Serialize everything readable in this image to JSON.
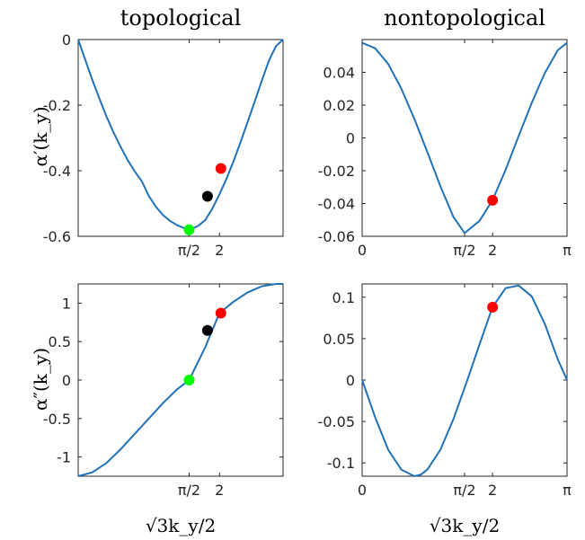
{
  "columns": [
    "topological",
    "nontopological"
  ],
  "row_ylabels": [
    "α′(k_y)",
    "α″(k_y)"
  ],
  "xlabel": "√3k_y/2",
  "colors": {
    "line": "#1f72b8",
    "red": "#ff0000",
    "black": "#000000",
    "green": "#00ff00"
  },
  "chart_data": [
    {
      "type": "line",
      "title": "topological",
      "xlabel": "",
      "ylabel": "α′(k_y)",
      "xlim": [
        0,
        2.9
      ],
      "ylim": [
        -0.6,
        0
      ],
      "xticks": [
        {
          "v": 1.5708,
          "label": "π/2"
        },
        {
          "v": 2,
          "label": "2"
        }
      ],
      "yticks": [
        {
          "v": 0,
          "label": "0"
        },
        {
          "v": -0.2,
          "label": "-0.2"
        },
        {
          "v": -0.4,
          "label": "-0.4"
        },
        {
          "v": -0.6,
          "label": "-0.6"
        }
      ],
      "series": [
        {
          "x": [
            0,
            0.1,
            0.2,
            0.3,
            0.4,
            0.5,
            0.6,
            0.7,
            0.8,
            0.9,
            1.0,
            1.1,
            1.2,
            1.3,
            1.4,
            1.5,
            1.5708,
            1.6,
            1.7,
            1.8,
            1.9,
            2.0,
            2.1,
            2.2,
            2.3,
            2.4,
            2.5,
            2.6,
            2.7,
            2.8,
            2.9
          ],
          "y": [
            0,
            -0.062,
            -0.123,
            -0.18,
            -0.234,
            -0.283,
            -0.327,
            -0.367,
            -0.402,
            -0.432,
            -0.477,
            -0.51,
            -0.535,
            -0.553,
            -0.566,
            -0.575,
            -0.58,
            -0.578,
            -0.568,
            -0.55,
            -0.515,
            -0.472,
            -0.424,
            -0.37,
            -0.312,
            -0.25,
            -0.188,
            -0.125,
            -0.064,
            -0.02,
            0
          ]
        }
      ],
      "points": [
        {
          "x": 1.5708,
          "y": -0.58,
          "color": "green"
        },
        {
          "x": 1.83,
          "y": -0.478,
          "color": "black"
        },
        {
          "x": 2.02,
          "y": -0.393,
          "color": "red"
        }
      ]
    },
    {
      "type": "line",
      "title": "nontopological",
      "xlabel": "",
      "ylabel": "",
      "xlim": [
        0,
        3.1416
      ],
      "ylim": [
        -0.06,
        0.06
      ],
      "xticks": [
        {
          "v": 0,
          "label": "0"
        },
        {
          "v": 1.5708,
          "label": "π/2"
        },
        {
          "v": 2,
          "label": "2"
        },
        {
          "v": 3.1416,
          "label": "π"
        }
      ],
      "yticks": [
        {
          "v": 0.04,
          "label": "0.04"
        },
        {
          "v": 0.02,
          "label": "0.02"
        },
        {
          "v": 0,
          "label": "0"
        },
        {
          "v": -0.02,
          "label": "-0.02"
        },
        {
          "v": -0.04,
          "label": "-0.04"
        },
        {
          "v": -0.06,
          "label": "-0.06"
        }
      ],
      "series": [
        {
          "x": [
            0,
            0.2,
            0.4,
            0.6,
            0.8,
            1.0,
            1.2,
            1.4,
            1.5708,
            1.8,
            2.0,
            2.2,
            2.4,
            2.6,
            2.8,
            3.0,
            3.1416
          ],
          "y": [
            0.058,
            0.0547,
            0.0451,
            0.0302,
            0.0116,
            -0.0087,
            -0.0295,
            -0.0482,
            -0.058,
            -0.0506,
            -0.038,
            -0.0194,
            0.0012,
            0.0213,
            0.0395,
            0.0535,
            0.058
          ]
        }
      ],
      "points": [
        {
          "x": 2.0,
          "y": -0.038,
          "color": "red"
        }
      ]
    },
    {
      "type": "line",
      "title": "",
      "xlabel": "√3k_y/2",
      "ylabel": "α″(k_y)",
      "xlim": [
        0,
        2.9
      ],
      "ylim": [
        -1.25,
        1.25
      ],
      "xticks": [
        {
          "v": 1.5708,
          "label": "π/2"
        },
        {
          "v": 2,
          "label": "2"
        }
      ],
      "yticks": [
        {
          "v": 1,
          "label": "1"
        },
        {
          "v": 0.5,
          "label": "0.5"
        },
        {
          "v": 0,
          "label": "0"
        },
        {
          "v": -0.5,
          "label": "-0.5"
        },
        {
          "v": -1,
          "label": "-1"
        }
      ],
      "series": [
        {
          "x": [
            0,
            0.2,
            0.4,
            0.6,
            0.8,
            1.0,
            1.2,
            1.4,
            1.5708,
            1.8,
            2.0,
            2.2,
            2.4,
            2.6,
            2.8,
            2.9
          ],
          "y": [
            -1.25,
            -1.2,
            -1.08,
            -0.9,
            -0.7,
            -0.5,
            -0.3,
            -0.12,
            0,
            0.43,
            0.87,
            1.02,
            1.14,
            1.22,
            1.25,
            1.25
          ]
        }
      ],
      "points": [
        {
          "x": 1.5708,
          "y": 0,
          "color": "green"
        },
        {
          "x": 1.83,
          "y": 0.645,
          "color": "black"
        },
        {
          "x": 2.02,
          "y": 0.87,
          "color": "red"
        }
      ]
    },
    {
      "type": "line",
      "title": "",
      "xlabel": "√3k_y/2",
      "ylabel": "",
      "xlim": [
        0,
        3.1416
      ],
      "ylim": [
        -0.116,
        0.116
      ],
      "xticks": [
        {
          "v": 0,
          "label": "0"
        },
        {
          "v": 1.5708,
          "label": "π/2"
        },
        {
          "v": 2,
          "label": "2"
        },
        {
          "v": 3.1416,
          "label": "π"
        }
      ],
      "yticks": [
        {
          "v": 0.1,
          "label": "0.1"
        },
        {
          "v": 0.05,
          "label": "0.05"
        },
        {
          "v": 0,
          "label": "0"
        },
        {
          "v": -0.05,
          "label": "-0.05"
        },
        {
          "v": -0.1,
          "label": "-0.1"
        }
      ],
      "series": [
        {
          "x": [
            0,
            0.2,
            0.4,
            0.6,
            0.8,
            0.9,
            1.0,
            1.2,
            1.4,
            1.6,
            1.8,
            2.0,
            2.2,
            2.4,
            2.6,
            2.8,
            3.0,
            3.1416
          ],
          "y": [
            0,
            -0.045,
            -0.084,
            -0.108,
            -0.116,
            -0.114,
            -0.108,
            -0.084,
            -0.047,
            -0.003,
            0.043,
            0.088,
            0.111,
            0.114,
            0.101,
            0.068,
            0.025,
            0
          ]
        }
      ],
      "points": [
        {
          "x": 2.0,
          "y": 0.088,
          "color": "red"
        }
      ]
    }
  ]
}
